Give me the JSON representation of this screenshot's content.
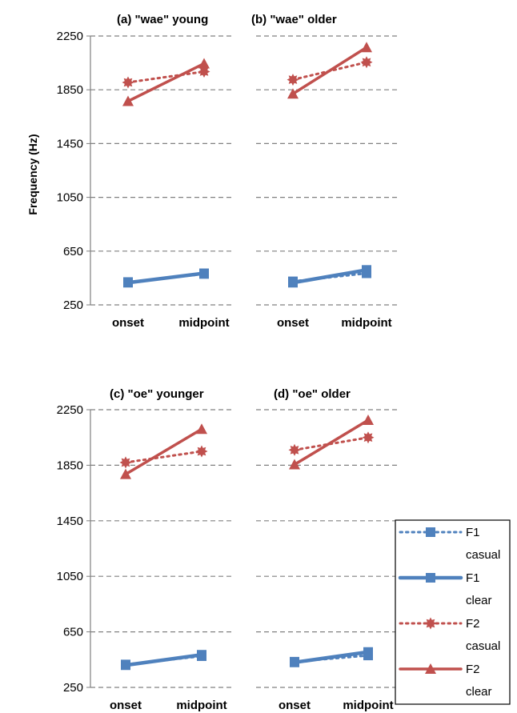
{
  "chart_data": [
    {
      "type": "line",
      "title": "(a) \"wae\" young",
      "ylabel": "Frequency (Hz)",
      "categories": [
        "onset",
        "midpoint"
      ],
      "ylim": [
        250,
        2250
      ],
      "yticks": [
        250,
        650,
        1050,
        1450,
        1850,
        2250
      ],
      "grid": true,
      "series": [
        {
          "name": "F1 casual",
          "values": [
            420,
            480
          ]
        },
        {
          "name": "F1 clear",
          "values": [
            415,
            485
          ]
        },
        {
          "name": "F2 casual",
          "values": [
            1905,
            1985
          ]
        },
        {
          "name": "F2 clear",
          "values": [
            1765,
            2045
          ]
        }
      ]
    },
    {
      "type": "line",
      "title": "(b) \"wae\"  older",
      "categories": [
        "onset",
        "midpoint"
      ],
      "ylim": [
        250,
        2250
      ],
      "yticks": [
        250,
        650,
        1050,
        1450,
        1850,
        2250
      ],
      "grid": true,
      "series": [
        {
          "name": "F1 casual",
          "values": [
            425,
            485
          ]
        },
        {
          "name": "F1 clear",
          "values": [
            415,
            510
          ]
        },
        {
          "name": "F2 casual",
          "values": [
            1925,
            2055
          ]
        },
        {
          "name": "F2 clear",
          "values": [
            1820,
            2165
          ]
        }
      ]
    },
    {
      "type": "line",
      "title": "(c) \"oe\" younger",
      "categories": [
        "onset",
        "midpoint"
      ],
      "ylim": [
        250,
        2250
      ],
      "yticks": [
        250,
        650,
        1050,
        1450,
        1850,
        2250
      ],
      "grid": true,
      "series": [
        {
          "name": "F1 casual",
          "values": [
            415,
            475
          ]
        },
        {
          "name": "F1 clear",
          "values": [
            410,
            485
          ]
        },
        {
          "name": "F2 casual",
          "values": [
            1870,
            1950
          ]
        },
        {
          "name": "F2 clear",
          "values": [
            1785,
            2110
          ]
        }
      ]
    },
    {
      "type": "line",
      "title": "(d) \"oe\"  older",
      "categories": [
        "onset",
        "midpoint"
      ],
      "ylim": [
        250,
        2250
      ],
      "yticks": [
        250,
        650,
        1050,
        1450,
        1850,
        2250
      ],
      "grid": true,
      "series": [
        {
          "name": "F1 casual",
          "values": [
            435,
            480
          ]
        },
        {
          "name": "F1 clear",
          "values": [
            430,
            505
          ]
        },
        {
          "name": "F2 casual",
          "values": [
            1960,
            2050
          ]
        },
        {
          "name": "F2 clear",
          "values": [
            1855,
            2175
          ]
        }
      ]
    }
  ],
  "legend": {
    "position": "bottom-right",
    "entries": [
      {
        "line1": "F1",
        "line2": "casual"
      },
      {
        "line1": "F1",
        "line2": "clear"
      },
      {
        "line1": "F2",
        "line2": "casual"
      },
      {
        "line1": "F2",
        "line2": "clear"
      }
    ]
  },
  "colors": {
    "f1": "#4f81bd",
    "f2": "#c0504d",
    "grid": "#808080",
    "axis": "#7f7f7f"
  }
}
